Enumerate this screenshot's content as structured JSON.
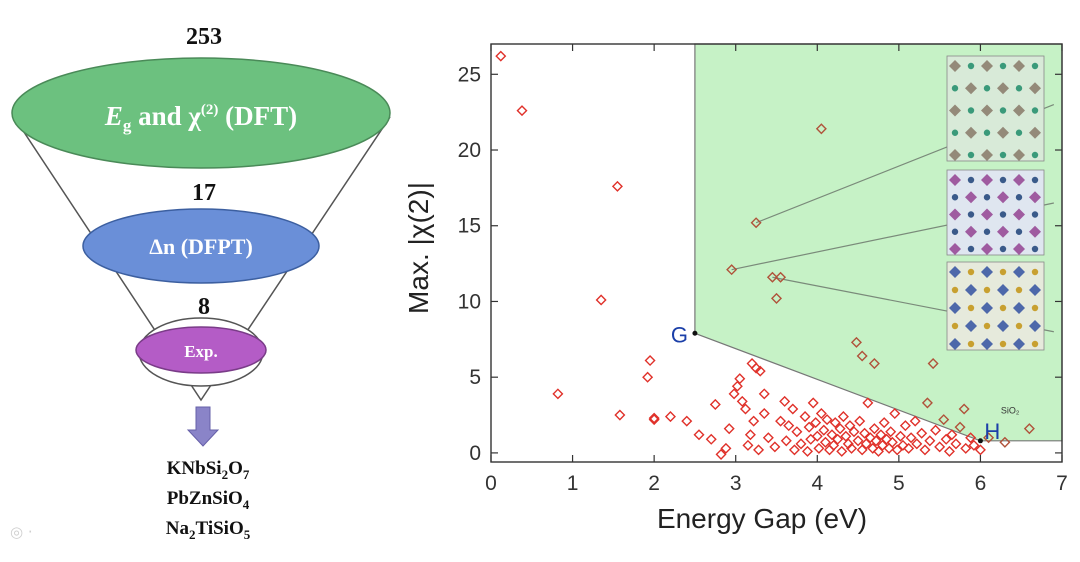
{
  "funnel": {
    "stage1_count": "253",
    "stage1_label": {
      "symbol": "E",
      "sub": "g",
      "and": " and χ",
      "sup": "(2)",
      "method": " (DFT)"
    },
    "stage2_count": "17",
    "stage2_label": "Δn (DFPT)",
    "stage3_count": "8",
    "stage3_label": "Exp.",
    "colors": {
      "stage1": "#6cc17f",
      "stage2": "#6a8fd8",
      "stage3": "#b45cc6",
      "arrow": "#8a84c8"
    },
    "compounds": [
      {
        "parts": [
          "KNbSi",
          "2",
          "O",
          "7"
        ]
      },
      {
        "parts": [
          "PbZnSiO",
          "4"
        ]
      },
      {
        "parts": [
          "Na",
          "2",
          "TiSiO",
          "5"
        ]
      }
    ]
  },
  "chart_data": {
    "type": "scatter",
    "xlabel": "Energy Gap (eV)",
    "ylabel": "Max. |χ(2)|",
    "xlim": [
      0,
      7
    ],
    "ylim": [
      -0.6,
      27
    ],
    "xticks": [
      0,
      1,
      2,
      3,
      4,
      5,
      6,
      7
    ],
    "yticks": [
      0,
      5,
      10,
      15,
      20,
      25
    ],
    "region": {
      "color": "#c6f2c6",
      "polygon": [
        [
          2.5,
          27
        ],
        [
          7,
          27
        ],
        [
          7,
          0.8
        ],
        [
          6.0,
          0.8
        ],
        [
          2.5,
          7.9
        ]
      ]
    },
    "annotations": [
      {
        "label": "G",
        "x": 2.5,
        "y": 7.9,
        "color": "#1b3fa8"
      },
      {
        "label": "H",
        "x": 6.0,
        "y": 0.8,
        "color": "#1b3fa8"
      },
      {
        "label": "SiO₂",
        "x": 6.25,
        "y": 2.6,
        "color": "#333333"
      }
    ],
    "marker_color": "#e0312a",
    "marker_color_inside": "#b0523a",
    "highlight_leaders": [
      {
        "from": [
          3.25,
          15.2
        ],
        "to": [
          6.9,
          23.0
        ]
      },
      {
        "from": [
          2.95,
          12.1
        ],
        "to": [
          6.9,
          16.5
        ]
      },
      {
        "from": [
          3.45,
          11.6
        ],
        "to": [
          6.9,
          8.0
        ]
      }
    ],
    "points": [
      [
        0.12,
        26.2
      ],
      [
        0.38,
        22.6
      ],
      [
        0.82,
        3.9
      ],
      [
        1.35,
        10.1
      ],
      [
        1.55,
        17.6
      ],
      [
        1.58,
        2.5
      ],
      [
        1.92,
        5.0
      ],
      [
        1.95,
        6.1
      ],
      [
        2.0,
        2.3
      ],
      [
        2.0,
        2.2
      ],
      [
        2.2,
        2.4
      ],
      [
        2.4,
        2.1
      ],
      [
        2.55,
        1.2
      ],
      [
        2.7,
        0.9
      ],
      [
        2.75,
        3.2
      ],
      [
        2.82,
        -0.1
      ],
      [
        2.88,
        0.3
      ],
      [
        2.92,
        1.6
      ],
      [
        2.95,
        12.1
      ],
      [
        2.98,
        3.9
      ],
      [
        3.02,
        4.4
      ],
      [
        3.05,
        4.9
      ],
      [
        3.08,
        3.4
      ],
      [
        3.12,
        2.9
      ],
      [
        3.15,
        0.5
      ],
      [
        3.18,
        1.2
      ],
      [
        3.2,
        5.9
      ],
      [
        3.22,
        2.1
      ],
      [
        3.25,
        15.2
      ],
      [
        3.25,
        5.6
      ],
      [
        3.28,
        0.2
      ],
      [
        3.3,
        5.4
      ],
      [
        3.35,
        2.6
      ],
      [
        3.35,
        3.9
      ],
      [
        3.4,
        1.0
      ],
      [
        3.45,
        11.6
      ],
      [
        3.48,
        0.4
      ],
      [
        3.5,
        10.2
      ],
      [
        3.55,
        11.6
      ],
      [
        3.55,
        2.1
      ],
      [
        3.6,
        3.4
      ],
      [
        3.62,
        0.8
      ],
      [
        3.65,
        1.8
      ],
      [
        3.7,
        2.9
      ],
      [
        3.72,
        0.2
      ],
      [
        3.75,
        1.4
      ],
      [
        3.8,
        0.6
      ],
      [
        3.85,
        2.4
      ],
      [
        3.88,
        0.1
      ],
      [
        3.9,
        1.7
      ],
      [
        3.92,
        0.9
      ],
      [
        3.95,
        3.3
      ],
      [
        3.98,
        2.0
      ],
      [
        4.0,
        1.1
      ],
      [
        4.02,
        0.3
      ],
      [
        4.05,
        21.4
      ],
      [
        4.05,
        2.6
      ],
      [
        4.08,
        1.5
      ],
      [
        4.1,
        0.7
      ],
      [
        4.12,
        2.2
      ],
      [
        4.15,
        0.2
      ],
      [
        4.18,
        1.2
      ],
      [
        4.2,
        0.5
      ],
      [
        4.22,
        2.0
      ],
      [
        4.25,
        0.9
      ],
      [
        4.28,
        1.6
      ],
      [
        4.3,
        0.1
      ],
      [
        4.32,
        2.4
      ],
      [
        4.35,
        1.1
      ],
      [
        4.38,
        0.6
      ],
      [
        4.4,
        1.8
      ],
      [
        4.42,
        0.3
      ],
      [
        4.45,
        1.4
      ],
      [
        4.48,
        7.3
      ],
      [
        4.5,
        0.8
      ],
      [
        4.52,
        2.1
      ],
      [
        4.55,
        6.4
      ],
      [
        4.55,
        0.2
      ],
      [
        4.58,
        1.3
      ],
      [
        4.6,
        0.6
      ],
      [
        4.62,
        3.3
      ],
      [
        4.65,
        1.0
      ],
      [
        4.68,
        0.3
      ],
      [
        4.7,
        5.9
      ],
      [
        4.7,
        1.6
      ],
      [
        4.72,
        0.8
      ],
      [
        4.75,
        0.1
      ],
      [
        4.78,
        1.2
      ],
      [
        4.8,
        0.5
      ],
      [
        4.82,
        2.0
      ],
      [
        4.85,
        0.9
      ],
      [
        4.88,
        0.3
      ],
      [
        4.9,
        1.4
      ],
      [
        4.92,
        0.7
      ],
      [
        4.95,
        2.6
      ],
      [
        4.98,
        0.2
      ],
      [
        5.02,
        1.1
      ],
      [
        5.05,
        0.5
      ],
      [
        5.08,
        1.8
      ],
      [
        5.12,
        0.3
      ],
      [
        5.15,
        1.0
      ],
      [
        5.2,
        2.1
      ],
      [
        5.22,
        0.6
      ],
      [
        5.28,
        1.3
      ],
      [
        5.32,
        0.2
      ],
      [
        5.35,
        3.3
      ],
      [
        5.38,
        0.8
      ],
      [
        5.42,
        5.9
      ],
      [
        5.45,
        1.5
      ],
      [
        5.5,
        0.4
      ],
      [
        5.55,
        2.2
      ],
      [
        5.58,
        0.9
      ],
      [
        5.62,
        0.1
      ],
      [
        5.65,
        1.2
      ],
      [
        5.7,
        0.6
      ],
      [
        5.75,
        1.7
      ],
      [
        5.8,
        2.9
      ],
      [
        5.82,
        0.3
      ],
      [
        5.88,
        1.0
      ],
      [
        5.92,
        0.5
      ],
      [
        6.0,
        0.2
      ],
      [
        6.1,
        1.0
      ],
      [
        6.3,
        0.7
      ],
      [
        6.6,
        1.6
      ]
    ]
  }
}
